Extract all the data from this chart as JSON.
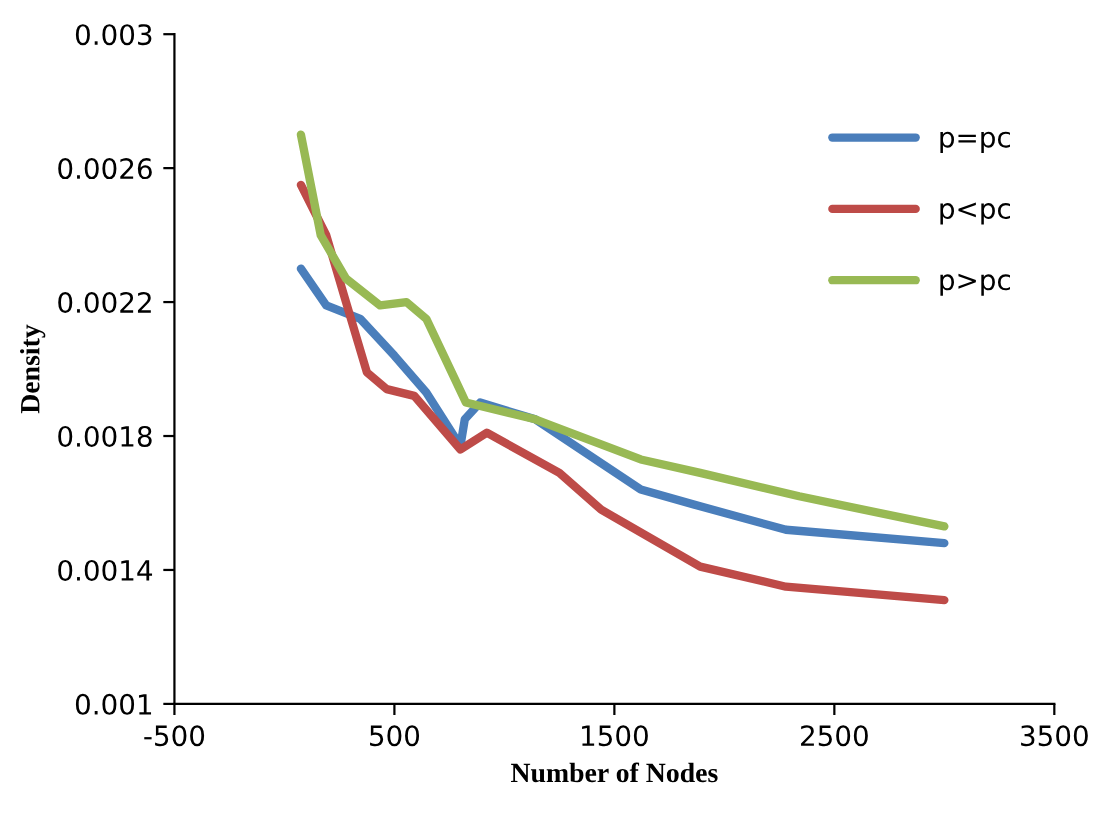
{
  "chart_data": {
    "type": "line",
    "xlabel": "Number of Nodes",
    "ylabel": "Density",
    "xlim": [
      -500,
      3500
    ],
    "xticks": [
      -500,
      500,
      1500,
      2500,
      3500
    ],
    "ylim": [
      0.001,
      0.003
    ],
    "yticks": [
      0.001,
      0.0014,
      0.0018,
      0.0022,
      0.0026,
      0.003
    ],
    "grid": false,
    "legend": "top right",
    "marker": "none",
    "line_style": "solid",
    "series": [
      {
        "name": "p=pc",
        "color": "#4a7ebb",
        "x": [
          75,
          190,
          345,
          500,
          645,
          800,
          820,
          890,
          1140,
          1620,
          1890,
          2280,
          3000
        ],
        "values": [
          0.0023,
          0.00219,
          0.00215,
          0.00204,
          0.00193,
          0.00177,
          0.00185,
          0.0019,
          0.00185,
          0.00164,
          0.00159,
          0.00152,
          0.00148
        ]
      },
      {
        "name": "p<pc",
        "color": "#be4b48",
        "x": [
          75,
          190,
          280,
          375,
          465,
          590,
          800,
          920,
          1250,
          1440,
          1890,
          2280,
          3000
        ],
        "values": [
          0.00255,
          0.0024,
          0.0022,
          0.00199,
          0.00194,
          0.00192,
          0.00176,
          0.00181,
          0.00169,
          0.00158,
          0.00141,
          0.00135,
          0.00131
        ]
      },
      {
        "name": "p>pc",
        "color": "#98b954",
        "x": [
          75,
          165,
          280,
          435,
          555,
          645,
          775,
          825,
          1140,
          1620,
          1890,
          2340,
          3000
        ],
        "values": [
          0.0027,
          0.0024,
          0.00227,
          0.00219,
          0.0022,
          0.00215,
          0.00197,
          0.0019,
          0.00185,
          0.00173,
          0.00169,
          0.00162,
          0.00153
        ]
      }
    ]
  }
}
